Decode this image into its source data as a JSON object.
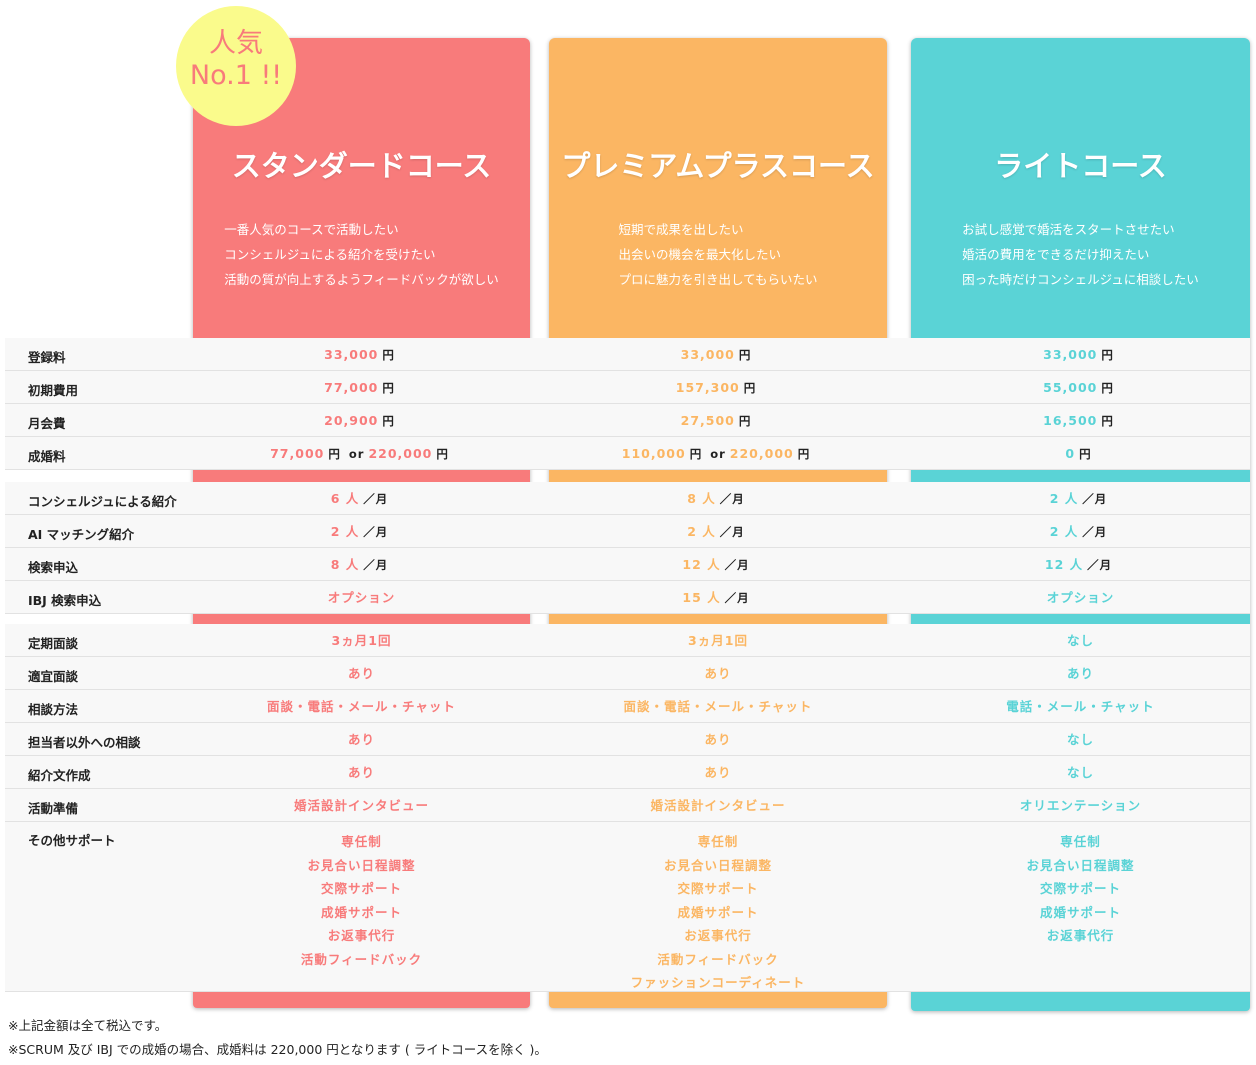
{
  "badge": {
    "line1": "人気",
    "line2": "No.1 !!"
  },
  "plans": [
    {
      "name": "スタンダードコース",
      "color": "#f87b7b",
      "description": [
        "一番人気のコースで活動したい",
        "コンシェルジュによる紹介を受けたい",
        "活動の質が向上するようフィードバックが欲しい"
      ]
    },
    {
      "name": "プレミアムプラスコース",
      "color": "#fbb663",
      "description": [
        "短期で成果を出したい",
        "出会いの機会を最大化したい",
        "プロに魅力を引き出してもらいたい"
      ]
    },
    {
      "name": "ライトコース",
      "color": "#5ad3d6",
      "description": [
        "お試し感覚で婚活をスタートさせたい",
        "婚活の費用をできるだけ抑えたい",
        "困った時だけコンシェルジュに相談したい"
      ]
    }
  ],
  "sections": [
    {
      "rows": [
        {
          "label": "登録料",
          "cells": [
            [
              [
                {
                  "text": "33,000",
                  "accent": true
                },
                {
                  "text": "円"
                }
              ]
            ],
            [
              [
                {
                  "text": "33,000",
                  "accent": true
                },
                {
                  "text": "円"
                }
              ]
            ],
            [
              [
                {
                  "text": "33,000",
                  "accent": true
                },
                {
                  "text": "円"
                }
              ]
            ]
          ]
        },
        {
          "label": "初期費用",
          "cells": [
            [
              [
                {
                  "text": "77,000",
                  "accent": true
                },
                {
                  "text": "円"
                }
              ]
            ],
            [
              [
                {
                  "text": "157,300",
                  "accent": true
                },
                {
                  "text": "円"
                }
              ]
            ],
            [
              [
                {
                  "text": "55,000",
                  "accent": true
                },
                {
                  "text": "円"
                }
              ]
            ]
          ]
        },
        {
          "label": "月会費",
          "cells": [
            [
              [
                {
                  "text": "20,900",
                  "accent": true
                },
                {
                  "text": "円"
                }
              ]
            ],
            [
              [
                {
                  "text": "27,500",
                  "accent": true
                },
                {
                  "text": "円"
                }
              ]
            ],
            [
              [
                {
                  "text": "16,500",
                  "accent": true
                },
                {
                  "text": "円"
                }
              ]
            ]
          ]
        },
        {
          "label": "成婚料",
          "cells": [
            [
              [
                {
                  "text": "77,000",
                  "accent": true
                },
                {
                  "text": "円"
                },
                {
                  "text": "or"
                },
                {
                  "text": "220,000",
                  "accent": true
                },
                {
                  "text": "円"
                }
              ]
            ],
            [
              [
                {
                  "text": "110,000",
                  "accent": true
                },
                {
                  "text": "円"
                },
                {
                  "text": "or"
                },
                {
                  "text": "220,000",
                  "accent": true
                },
                {
                  "text": "円"
                }
              ]
            ],
            [
              [
                {
                  "text": "0",
                  "accent": true
                },
                {
                  "text": "円"
                }
              ]
            ]
          ]
        }
      ]
    },
    {
      "rows": [
        {
          "label": "コンシェルジュによる紹介",
          "cells": [
            [
              [
                {
                  "text": "6 人",
                  "accent": true
                },
                {
                  "text": "／月"
                }
              ]
            ],
            [
              [
                {
                  "text": "8 人",
                  "accent": true
                },
                {
                  "text": "／月"
                }
              ]
            ],
            [
              [
                {
                  "text": "2 人",
                  "accent": true
                },
                {
                  "text": "／月"
                }
              ]
            ]
          ]
        },
        {
          "label": "AI マッチング紹介",
          "cells": [
            [
              [
                {
                  "text": "2 人",
                  "accent": true
                },
                {
                  "text": "／月"
                }
              ]
            ],
            [
              [
                {
                  "text": "2 人",
                  "accent": true
                },
                {
                  "text": "／月"
                }
              ]
            ],
            [
              [
                {
                  "text": "2 人",
                  "accent": true
                },
                {
                  "text": "／月"
                }
              ]
            ]
          ]
        },
        {
          "label": "検索申込",
          "cells": [
            [
              [
                {
                  "text": "8 人",
                  "accent": true
                },
                {
                  "text": "／月"
                }
              ]
            ],
            [
              [
                {
                  "text": "12 人",
                  "accent": true
                },
                {
                  "text": "／月"
                }
              ]
            ],
            [
              [
                {
                  "text": "12 人",
                  "accent": true
                },
                {
                  "text": "／月"
                }
              ]
            ]
          ]
        },
        {
          "label": "IBJ 検索申込",
          "cells": [
            [
              [
                {
                  "text": "オプション",
                  "accent": true
                }
              ]
            ],
            [
              [
                {
                  "text": "15 人",
                  "accent": true
                },
                {
                  "text": "／月"
                }
              ]
            ],
            [
              [
                {
                  "text": "オプション",
                  "accent": true
                }
              ]
            ]
          ]
        }
      ]
    },
    {
      "rows": [
        {
          "label": "定期面談",
          "cells": [
            [
              [
                {
                  "text": "3ヵ月1回",
                  "accent": true
                }
              ]
            ],
            [
              [
                {
                  "text": "3ヵ月1回",
                  "accent": true
                }
              ]
            ],
            [
              [
                {
                  "text": "なし",
                  "accent": true
                }
              ]
            ]
          ]
        },
        {
          "label": "適宜面談",
          "cells": [
            [
              [
                {
                  "text": "あり",
                  "accent": true
                }
              ]
            ],
            [
              [
                {
                  "text": "あり",
                  "accent": true
                }
              ]
            ],
            [
              [
                {
                  "text": "あり",
                  "accent": true
                }
              ]
            ]
          ]
        },
        {
          "label": "相談方法",
          "cells": [
            [
              [
                {
                  "text": "面談・電話・メール・チャット",
                  "accent": true
                }
              ]
            ],
            [
              [
                {
                  "text": "面談・電話・メール・チャット",
                  "accent": true
                }
              ]
            ],
            [
              [
                {
                  "text": "電話・メール・チャット",
                  "accent": true
                }
              ]
            ]
          ]
        },
        {
          "label": "担当者以外への相談",
          "cells": [
            [
              [
                {
                  "text": "あり",
                  "accent": true
                }
              ]
            ],
            [
              [
                {
                  "text": "あり",
                  "accent": true
                }
              ]
            ],
            [
              [
                {
                  "text": "なし",
                  "accent": true
                }
              ]
            ]
          ]
        },
        {
          "label": "紹介文作成",
          "cells": [
            [
              [
                {
                  "text": "あり",
                  "accent": true
                }
              ]
            ],
            [
              [
                {
                  "text": "あり",
                  "accent": true
                }
              ]
            ],
            [
              [
                {
                  "text": "なし",
                  "accent": true
                }
              ]
            ]
          ]
        },
        {
          "label": "活動準備",
          "cells": [
            [
              [
                {
                  "text": "婚活設計インタビュー",
                  "accent": true
                }
              ]
            ],
            [
              [
                {
                  "text": "婚活設計インタビュー",
                  "accent": true
                }
              ]
            ],
            [
              [
                {
                  "text": "オリエンテーション",
                  "accent": true
                }
              ]
            ]
          ]
        },
        {
          "label": "その他サポート",
          "cells": [
            [
              [
                {
                  "text": "専任制",
                  "accent": true
                }
              ],
              [
                {
                  "text": "お見合い日程調整",
                  "accent": true
                }
              ],
              [
                {
                  "text": "交際サポート",
                  "accent": true
                }
              ],
              [
                {
                  "text": "成婚サポート",
                  "accent": true
                }
              ],
              [
                {
                  "text": "お返事代行",
                  "accent": true
                }
              ],
              [
                {
                  "text": "活動フィードバック",
                  "accent": true
                }
              ]
            ],
            [
              [
                {
                  "text": "専任制",
                  "accent": true
                }
              ],
              [
                {
                  "text": "お見合い日程調整",
                  "accent": true
                }
              ],
              [
                {
                  "text": "交際サポート",
                  "accent": true
                }
              ],
              [
                {
                  "text": "成婚サポート",
                  "accent": true
                }
              ],
              [
                {
                  "text": "お返事代行",
                  "accent": true
                }
              ],
              [
                {
                  "text": "活動フィードバック",
                  "accent": true
                }
              ],
              [
                {
                  "text": "ファッションコーディネート",
                  "accent": true
                }
              ]
            ],
            [
              [
                {
                  "text": "専任制",
                  "accent": true
                }
              ],
              [
                {
                  "text": "お見合い日程調整",
                  "accent": true
                }
              ],
              [
                {
                  "text": "交際サポート",
                  "accent": true
                }
              ],
              [
                {
                  "text": "成婚サポート",
                  "accent": true
                }
              ],
              [
                {
                  "text": "お返事代行",
                  "accent": true
                }
              ]
            ]
          ]
        }
      ]
    }
  ],
  "notes": [
    "※上記金額は全て税込です。",
    "※SCRUM 及び IBJ での成婚の場合、成婚料は 220,000 円となります ( ライトコースを除く )。"
  ]
}
